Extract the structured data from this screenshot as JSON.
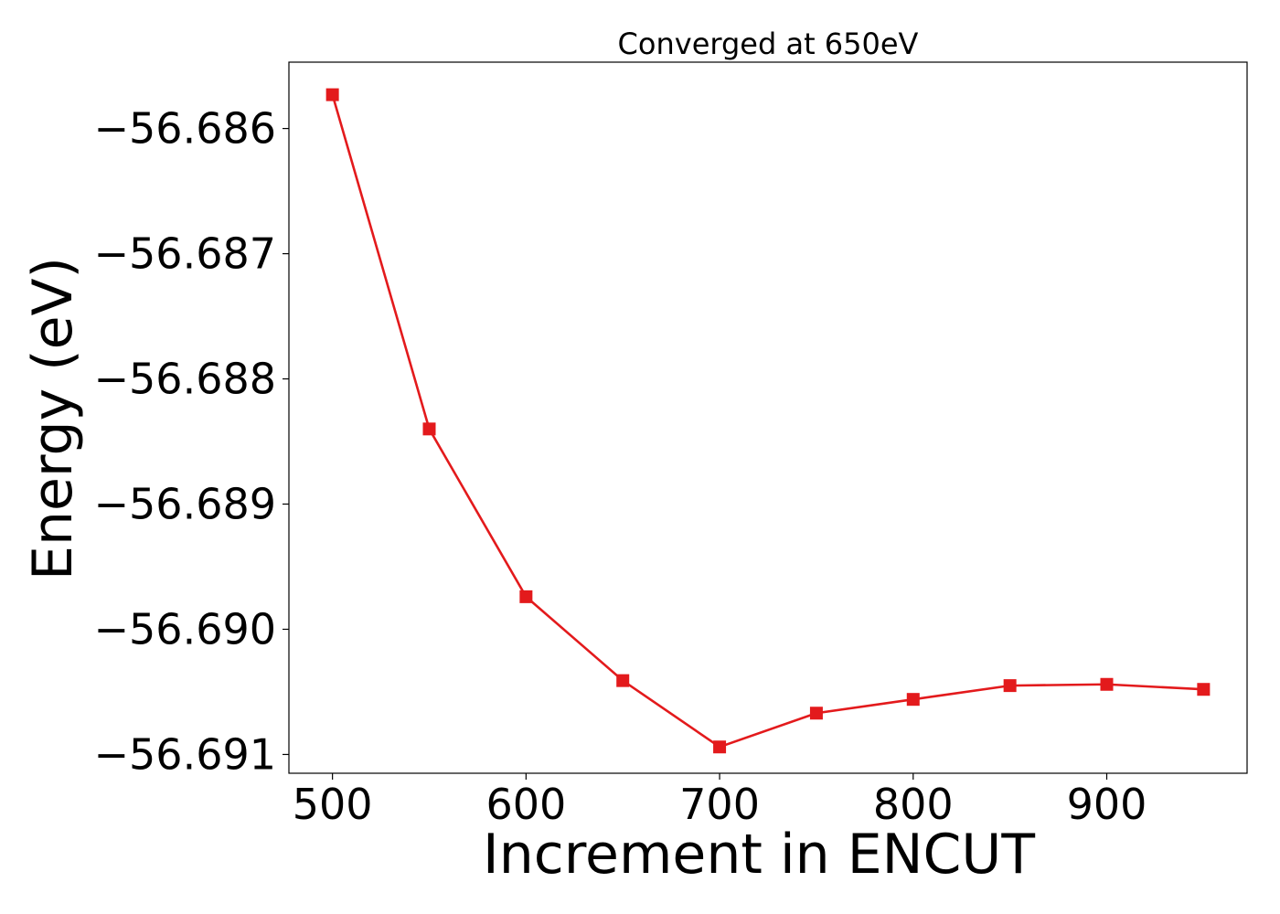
{
  "chart_data": {
    "type": "line",
    "title": "Converged at 650eV",
    "xlabel": "Increment in ENCUT",
    "ylabel": "Energy (eV)",
    "x": [
      500,
      550,
      600,
      650,
      700,
      750,
      800,
      850,
      900,
      950
    ],
    "series": [
      {
        "values": [
          -56.68573,
          -56.6884,
          -56.68974,
          -56.69041,
          -56.69094,
          -56.69067,
          -56.69056,
          -56.69045,
          -56.69044,
          -56.69048
        ],
        "color": "#e31a1c",
        "marker": "square"
      }
    ],
    "xticks": [
      500,
      600,
      700,
      800,
      900
    ],
    "xtick_labels": [
      "500",
      "600",
      "700",
      "800",
      "900"
    ],
    "yticks": [
      -56.686,
      -56.687,
      -56.688,
      -56.689,
      -56.69,
      -56.691
    ],
    "ytick_labels": [
      "−56.686",
      "−56.687",
      "−56.688",
      "−56.689",
      "−56.690",
      "−56.691"
    ],
    "xlim": [
      477.5,
      972.5
    ],
    "ylim": [
      -56.69115,
      -56.68547
    ],
    "grid": false,
    "legend": "none"
  }
}
